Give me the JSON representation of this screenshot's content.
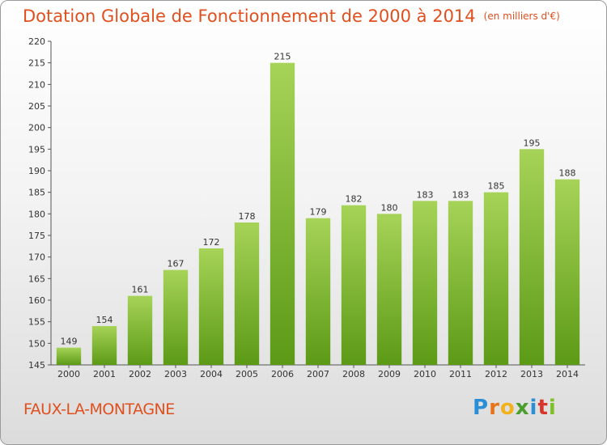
{
  "title": "Dotation Globale de Fonctionnement de 2000 à 2014",
  "unit_note": "(en milliers d'€)",
  "commune": "FAUX-LA-MONTAGNE",
  "logo": {
    "letters": [
      "P",
      "r",
      "o",
      "x",
      "i",
      "t",
      "i"
    ],
    "colors": [
      "#2a8fd6",
      "#e8731a",
      "#f2b21e",
      "#4a9e2c",
      "#2a8fd6",
      "#d8342a",
      "#7fbf2a"
    ]
  },
  "colors": {
    "title": "#e0501e",
    "bar_top": "#a6d358",
    "bar_bottom": "#5c9a16"
  },
  "chart_data": {
    "type": "bar",
    "categories": [
      "2000",
      "2001",
      "2002",
      "2003",
      "2004",
      "2005",
      "2006",
      "2007",
      "2008",
      "2009",
      "2010",
      "2011",
      "2012",
      "2013",
      "2014"
    ],
    "values": [
      149,
      154,
      161,
      167,
      172,
      178,
      215,
      179,
      182,
      180,
      183,
      183,
      185,
      195,
      188
    ],
    "ylim": [
      145,
      220
    ],
    "yticks": [
      145,
      150,
      155,
      160,
      165,
      170,
      175,
      180,
      185,
      190,
      195,
      200,
      205,
      210,
      215,
      220
    ],
    "grid": false,
    "title": "Dotation Globale de Fonctionnement de 2000 à 2014"
  }
}
